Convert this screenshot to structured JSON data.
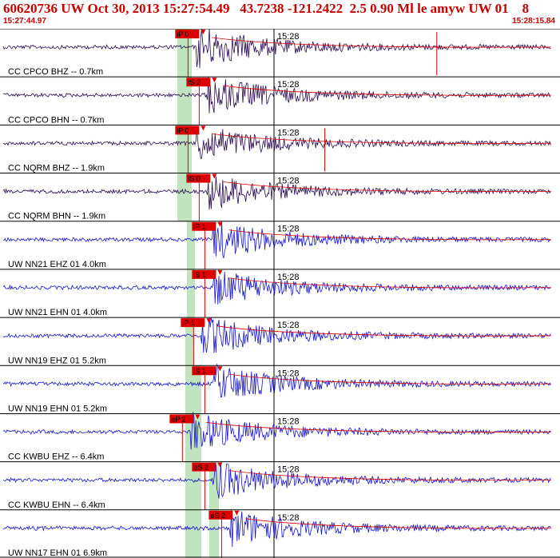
{
  "header": {
    "title": "60620736 UW Oct 30, 2013 15:27:54.49   43.7238 -121.2422  2.5 0.90 Ml le amyw UW 01    8",
    "start_time": "15:27:44.97",
    "end_time": "15:28:15.84"
  },
  "colors": {
    "pick": "#dd0000",
    "trace_cc": "#2a0a50",
    "trace_uw": "#1414d2",
    "window": "#bfe4bf",
    "grid": "#000000"
  },
  "tick_label": "15:28",
  "channels": [
    {
      "label": "CC CPCO BHZ -- 0.7km",
      "color_key": "trace_cc",
      "pick": "iP 0",
      "onset": 0.35,
      "amp": 1.0,
      "spikes": [
        0.78
      ]
    },
    {
      "label": "CC CPCO BHN -- 0.7km",
      "color_key": "trace_cc",
      "pick": "iS 2",
      "onset": 0.37,
      "amp": 0.9,
      "spikes": []
    },
    {
      "label": "CC NQRM BHZ -- 1.9km",
      "color_key": "trace_cc",
      "pick": "iP 0",
      "onset": 0.35,
      "amp": 0.85,
      "spikes": [
        0.58
      ]
    },
    {
      "label": "CC NQRM BHN -- 1.9km",
      "color_key": "trace_cc",
      "pick": "iS 0",
      "onset": 0.37,
      "amp": 0.8,
      "spikes": []
    },
    {
      "label": "UW NN21 EHZ 01 4.0km",
      "color_key": "trace_uw",
      "pick": "iP 1",
      "onset": 0.38,
      "amp": 0.9,
      "spikes": []
    },
    {
      "label": "UW NN21 EHN 01 4.0km",
      "color_key": "trace_uw",
      "pick": "iS 1",
      "onset": 0.38,
      "amp": 0.8,
      "spikes": []
    },
    {
      "label": "UW NN19 EHZ 01 5.2km",
      "color_key": "trace_uw",
      "pick": "iP 1",
      "onset": 0.36,
      "amp": 0.9,
      "spikes": []
    },
    {
      "label": "UW NN19 EHN 01 5.2km",
      "color_key": "trace_uw",
      "pick": "iS 1",
      "onset": 0.38,
      "amp": 0.85,
      "spikes": []
    },
    {
      "label": "CC KWBU EHZ -- 6.4km",
      "color_key": "trace_uw",
      "pick": "eP 2",
      "onset": 0.34,
      "amp": 0.9,
      "spikes": []
    },
    {
      "label": "CC KWBU EHN -- 6.4km",
      "color_key": "trace_uw",
      "pick": "eS 2",
      "onset": 0.38,
      "amp": 0.85,
      "spikes": []
    },
    {
      "label": "UW NN17 EHN 01 6.9km",
      "color_key": "trace_uw",
      "pick": "eS 2",
      "onset": 0.41,
      "amp": 0.85,
      "spikes": []
    }
  ]
}
